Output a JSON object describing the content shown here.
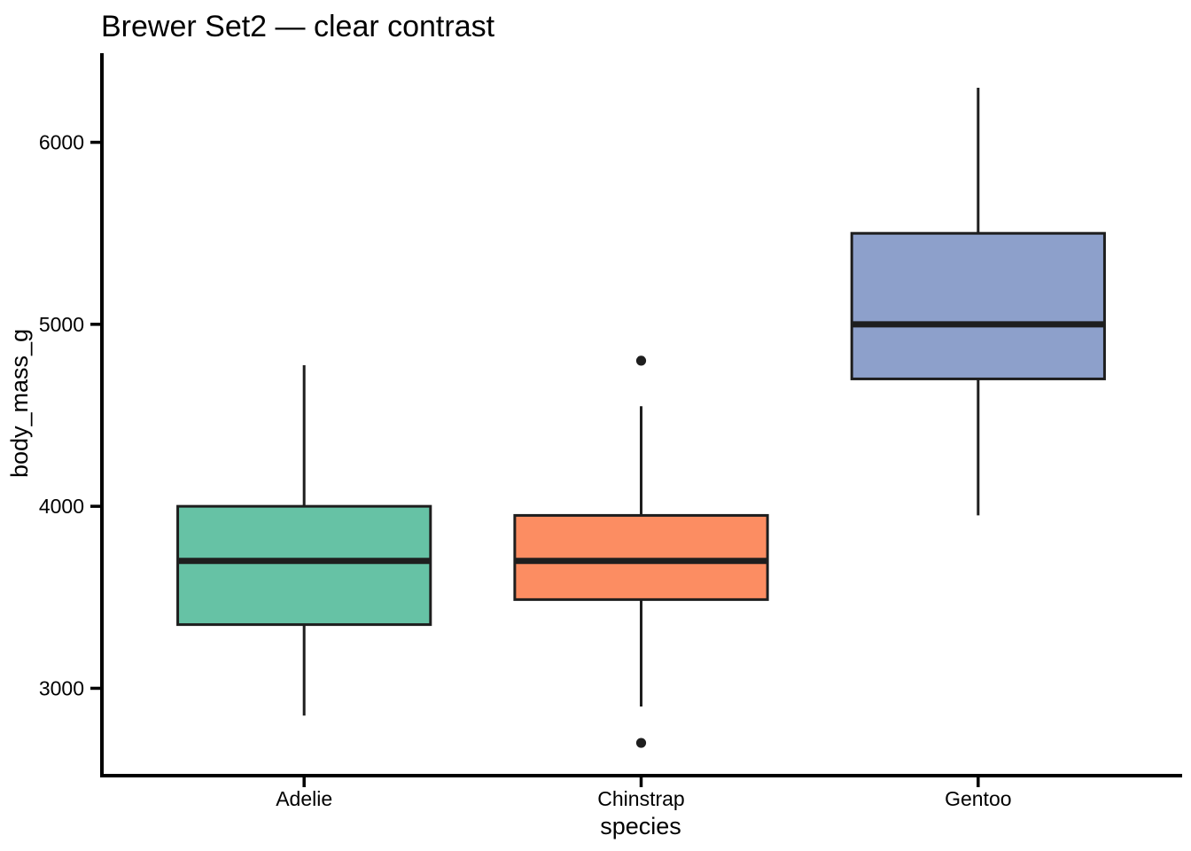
{
  "page": {
    "background": "#FFFFFF"
  },
  "chart_data": {
    "type": "boxplot",
    "title": "Brewer Set2 — clear contrast",
    "xlabel": "species",
    "ylabel": "body_mass_g",
    "categories": [
      "Adelie",
      "Chinstrap",
      "Gentoo"
    ],
    "ylim": [
      2520,
      6480
    ],
    "yticks": [
      3000,
      4000,
      5000,
      6000
    ],
    "ytick_labels": [
      "3000",
      "4000",
      "5000",
      "6000"
    ],
    "grid": false,
    "legend": "none",
    "background": "#FFFFFF",
    "stroke_color": "#1E1E1E",
    "axis_color": "#000000",
    "palette_name": "Brewer Set2",
    "series": [
      {
        "name": "Adelie",
        "fill": "#66C2A5",
        "whisker_low": 2850,
        "q1": 3350,
        "median": 3700,
        "q3": 4000,
        "whisker_high": 4775,
        "outliers": []
      },
      {
        "name": "Chinstrap",
        "fill": "#FC8D62",
        "whisker_low": 2900,
        "q1": 3487.5,
        "median": 3700,
        "q3": 3950,
        "whisker_high": 4550,
        "outliers": [
          2700,
          4800
        ]
      },
      {
        "name": "Gentoo",
        "fill": "#8DA0CB",
        "whisker_low": 3950,
        "q1": 4700,
        "median": 5000,
        "q3": 5500,
        "whisker_high": 6300,
        "outliers": []
      }
    ]
  }
}
